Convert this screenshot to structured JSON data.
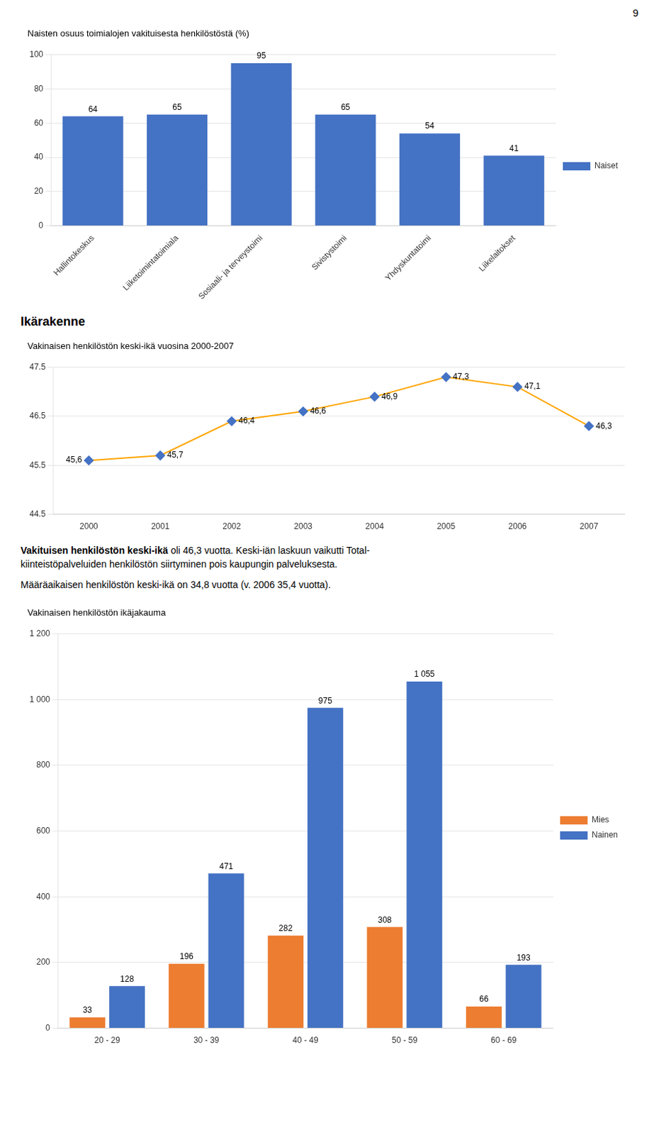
{
  "annotations": [
    "9",
    "Ikärakenne",
    "Vakituisen henkilöstön keski-ikä",
    " oli 46,3 vuotta. Keski-iän laskuun vaikutti Total-",
    "kiinteistöpalveluiden henkilöstön siirtyminen pois kaupungin palveluksesta.",
    "Määräaikaisen henkilöstön keski-ikä on 34,8 vuotta (v. 2006 35,4 vuotta)."
  ],
  "chart_data": [
    {
      "type": "bar",
      "title": "Naisten osuus toimialojen vakituisesta henkilöstöstä (%)",
      "categories": [
        "Hallintokeskus",
        "Liiketoimintatoimiala",
        "Sosiaali- ja terveystoimi",
        "Sivistystoimi",
        "Yhdyskuntatoimi",
        "Liikelaitokset"
      ],
      "series": [
        {
          "name": "Naiset",
          "color": "#4472C4",
          "values": [
            64,
            65,
            95,
            65,
            54,
            41
          ]
        }
      ],
      "ylim": [
        0,
        100
      ],
      "yticks": [
        0,
        20,
        40,
        60,
        80,
        100
      ],
      "grid": "y",
      "legend": "right",
      "data_labels": true
    },
    {
      "type": "line",
      "title": "Vakinaisen henkilöstön keski-ikä vuosina 2000-2007",
      "x": [
        2000,
        2001,
        2002,
        2003,
        2004,
        2005,
        2006,
        2007
      ],
      "values": [
        45.6,
        45.7,
        46.4,
        46.6,
        46.9,
        47.3,
        47.1,
        46.3
      ],
      "value_labels": [
        "45,6",
        "45,7",
        "46,4",
        "46,6",
        "46,9",
        "47,3",
        "47,1",
        "46,3"
      ],
      "color": "#FFA500",
      "colors": [
        "#4472C4",
        "#4472C4",
        "#4472C4",
        "#4472C4",
        "#4472C4",
        "#4472C4",
        "#4472C4",
        "#4472C4"
      ],
      "marker": "diamond",
      "xlim": [
        1999.5,
        2007.5
      ],
      "xticks": [
        2000,
        2001,
        2002,
        2003,
        2004,
        2005,
        2006,
        2007
      ],
      "ylim": [
        44.5,
        47.5
      ],
      "yticks": [
        44.5,
        45.5,
        46.5,
        47.5
      ],
      "grid": "y",
      "data_labels": true
    },
    {
      "type": "bar",
      "title": "Vakinaisen henkilöstön ikäjakauma",
      "categories": [
        "20 - 29",
        "30 - 39",
        "40 - 49",
        "50 - 59",
        "60 - 69"
      ],
      "series": [
        {
          "name": "Mies",
          "color": "#ED7D31",
          "values": [
            33,
            196,
            282,
            308,
            66
          ]
        },
        {
          "name": "Nainen",
          "color": "#4472C4",
          "values": [
            128,
            471,
            975,
            1055,
            193
          ],
          "value_labels": [
            "128",
            "471",
            "975",
            "1 055",
            "193"
          ]
        }
      ],
      "ylim": [
        0,
        1200
      ],
      "yticks": [
        0,
        200,
        400,
        600,
        800,
        {
          "value": 1000,
          "label": "1 000"
        },
        {
          "value": 1200,
          "label": "1 200"
        }
      ],
      "grid": "y",
      "legend": "right",
      "data_labels": true
    }
  ]
}
